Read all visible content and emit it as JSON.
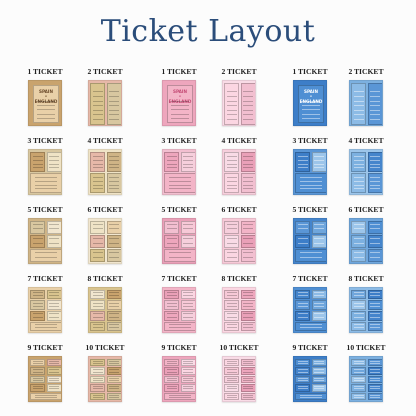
{
  "title": "Ticket Layout",
  "labels": [
    "1 TICKET",
    "2 TICKET",
    "3 TICKET",
    "4 TICKET",
    "5 TICKET",
    "6 TICKET",
    "7 TICKET",
    "8 TICKET",
    "9 TICKET",
    "10 TICKET"
  ],
  "single_ticket_text": {
    "line1": "SPAIN",
    "line2": "v",
    "line3": "ENGLAND"
  },
  "themes": [
    {
      "name": "vintage",
      "colors": [
        "#f1e6cf",
        "#e9d0a8",
        "#d9c48e",
        "#c9a36d",
        "#e6b8a8",
        "#d8c7a0",
        "#efe3c6",
        "#cfb486"
      ],
      "text": "#6b4a2a",
      "accent": "#c85a4a"
    },
    {
      "name": "pink",
      "colors": [
        "#f7c9d7",
        "#f3b4c7",
        "#fbd6e2",
        "#eea6bd",
        "#f9dbe6",
        "#f2bfd0",
        "#f6cfdc",
        "#eaa0b8"
      ],
      "text": "#c44a74",
      "accent": "#e0608a"
    },
    {
      "name": "blue",
      "colors": [
        "#6fa6dc",
        "#4f8fd3",
        "#8cbbe6",
        "#3d7ec8",
        "#7cb0e0",
        "#5a96d6",
        "#9cc5ea",
        "#4585cc"
      ],
      "text": "#ffffff",
      "accent": "#2a67b0"
    }
  ]
}
